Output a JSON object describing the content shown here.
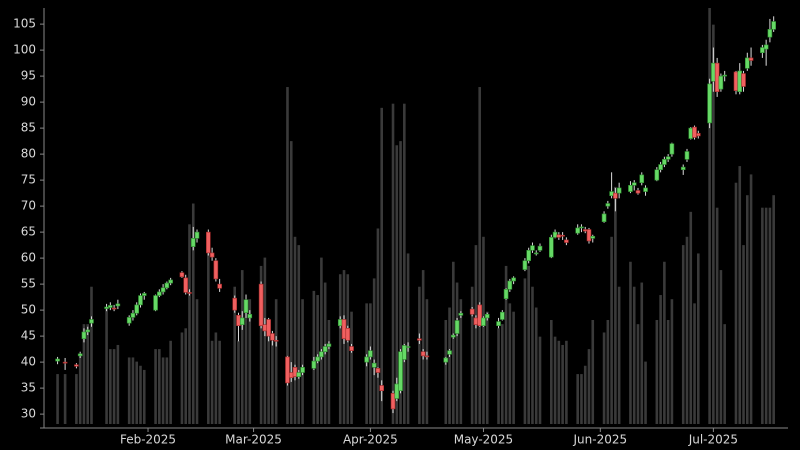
{
  "chart_data": {
    "type": "candlestick",
    "x": [
      8,
      10,
      13,
      14,
      15,
      16,
      17,
      21,
      22,
      23,
      24,
      27,
      28,
      29,
      30,
      31,
      34,
      35,
      36,
      37,
      38,
      41,
      42,
      43,
      44,
      45,
      48,
      49,
      50,
      51,
      55,
      56,
      57,
      58,
      59,
      62,
      63,
      64,
      65,
      66,
      69,
      70,
      71,
      72,
      73,
      76,
      77,
      78,
      79,
      80,
      83,
      84,
      85,
      86,
      90,
      91,
      92,
      93,
      94,
      97,
      98,
      99,
      100,
      101,
      104,
      105,
      106,
      111,
      112,
      113,
      114,
      115,
      118,
      119,
      120,
      121,
      122,
      125,
      126,
      127,
      128,
      129,
      132,
      133,
      134,
      135,
      136,
      139,
      140,
      141,
      142,
      143,
      146,
      147,
      148,
      149,
      150,
      153,
      154,
      155,
      156,
      157,
      160,
      161,
      162,
      163,
      164,
      167,
      168,
      169,
      170,
      171,
      174,
      175,
      176,
      177,
      178,
      181,
      182,
      183,
      184,
      185,
      188,
      189,
      190,
      191,
      192,
      195,
      196,
      197,
      198
    ],
    "open": [
      40.2,
      40,
      39.5,
      41.2,
      44.5,
      45.8,
      47.5,
      50.3,
      50.5,
      50.4,
      50.8,
      47.5,
      48.6,
      49.4,
      51,
      52.8,
      50,
      52.8,
      53.5,
      54.3,
      55.2,
      57.2,
      56.2,
      53.4,
      62.2,
      63.8,
      65,
      61,
      59.5,
      55,
      52.3,
      49,
      47.2,
      49.5,
      48.5,
      55,
      47.2,
      48.2,
      45.5,
      44.2,
      41,
      38,
      39,
      37.2,
      38,
      38.8,
      40.2,
      41,
      42,
      43,
      47,
      48.2,
      46.5,
      43,
      40,
      41,
      39,
      38.8,
      35.5,
      34,
      33,
      34.5,
      40.5,
      43,
      44.5,
      42,
      41.2,
      40,
      41.5,
      44.8,
      45.5,
      49,
      50.2,
      48.5,
      51,
      47,
      48.5,
      47,
      48.2,
      52.2,
      54,
      55.6,
      57.8,
      59.5,
      61.5,
      61,
      61.5,
      60.2,
      64,
      64.5,
      64.4,
      63.5,
      64.8,
      65.8,
      65.5,
      65.5,
      63.8,
      67,
      70,
      72,
      72.5,
      72.5,
      72.8,
      74,
      73,
      74.5,
      72.8,
      75,
      77,
      78,
      79,
      80,
      77,
      79,
      83,
      85.2,
      84,
      86,
      94,
      97.5,
      92.5,
      95,
      95.8,
      92,
      95.5,
      96.5,
      98.5,
      99.5,
      100.2,
      102.5,
      104
    ],
    "high": [
      41,
      40.8,
      39.8,
      42,
      46.5,
      46.8,
      48.8,
      51.2,
      51.5,
      51,
      52,
      49,
      50,
      51.5,
      53.2,
      53.5,
      53,
      54,
      55,
      55.5,
      56.2,
      57.5,
      56.8,
      54,
      66,
      65.5,
      65.5,
      62,
      60,
      56,
      52.8,
      49.5,
      49.8,
      53,
      50,
      55.5,
      48.5,
      48.5,
      46,
      45,
      41.2,
      40,
      39.5,
      38.5,
      39.5,
      41,
      41.5,
      42.5,
      43.5,
      44,
      48.8,
      49,
      47,
      43.5,
      41.5,
      43,
      40.5,
      39,
      36.5,
      34.5,
      37,
      42.5,
      43.5,
      43.8,
      45.5,
      42.5,
      42,
      41,
      42.5,
      45.5,
      48.5,
      49.8,
      50.6,
      49,
      51.5,
      48.8,
      49.5,
      48.5,
      50,
      54.2,
      56,
      56.5,
      60,
      62,
      63,
      61.5,
      62.8,
      64.5,
      65.5,
      65,
      65,
      64,
      66.5,
      66.5,
      66,
      65.8,
      64.5,
      69,
      71,
      76.5,
      73.5,
      74.5,
      74.8,
      75,
      73.5,
      76.5,
      74,
      77.5,
      78.5,
      79.5,
      80,
      82.2,
      78,
      81,
      85.2,
      85.5,
      84.5,
      94.5,
      100.5,
      98.5,
      95.5,
      96,
      96,
      97.5,
      96,
      99.5,
      100.5,
      101,
      102,
      106,
      106.5
    ],
    "low": [
      39.6,
      38.5,
      38.8,
      40.8,
      43.8,
      45.2,
      46.8,
      49.8,
      50,
      49.8,
      50.2,
      47,
      48,
      49,
      50.5,
      52,
      49.8,
      52.5,
      53,
      54,
      54.8,
      56.2,
      53,
      52.8,
      61.5,
      63,
      60.5,
      59.5,
      55.5,
      53.5,
      49.5,
      44,
      46.2,
      48.5,
      47.8,
      46.5,
      45,
      44,
      43.2,
      43,
      35.5,
      36.2,
      36.5,
      36.8,
      37.5,
      38.5,
      39.8,
      40.5,
      41.5,
      42.5,
      46.5,
      43.5,
      43.8,
      41.8,
      39.2,
      40.5,
      37.5,
      37,
      32.5,
      30.2,
      32.5,
      34,
      40,
      42,
      43.5,
      40.5,
      40.5,
      39.5,
      41,
      44.5,
      45,
      48.5,
      48.8,
      46.5,
      46.8,
      46.8,
      48,
      46.5,
      48,
      52,
      53.5,
      55,
      57.5,
      59,
      61,
      60.5,
      61.2,
      60,
      63.8,
      63.5,
      63.5,
      62.5,
      64.5,
      65,
      64.8,
      62.8,
      63,
      66.8,
      69.5,
      71.5,
      69,
      71.5,
      72.5,
      73,
      72.2,
      74,
      72,
      74.8,
      76.5,
      77.5,
      78.5,
      79.5,
      76,
      78.5,
      82.8,
      82.8,
      83,
      85,
      92,
      91,
      92,
      94,
      91.5,
      91.5,
      92,
      96,
      97,
      98.5,
      97,
      101.5,
      103.5
    ],
    "close": [
      40.6,
      39.8,
      39.2,
      41.6,
      45.8,
      46.2,
      48.2,
      50.6,
      50.9,
      50.2,
      51.2,
      48.6,
      49.4,
      51,
      52.8,
      53.2,
      52.8,
      53.5,
      54.3,
      55.2,
      55.8,
      56.4,
      53.4,
      53.2,
      63.8,
      65,
      61,
      60.2,
      56,
      54.2,
      50,
      47,
      48.5,
      52,
      49.2,
      47,
      46,
      45,
      44.2,
      44,
      36,
      37,
      37.2,
      38,
      39,
      40.2,
      41,
      42,
      43,
      43.5,
      48.2,
      44.5,
      44.2,
      42.2,
      41,
      42.2,
      39.8,
      38,
      34.5,
      31,
      35.8,
      42,
      43.2,
      43,
      44.2,
      41.2,
      41,
      40.8,
      42.2,
      45.2,
      48,
      49.4,
      49.2,
      47.2,
      47,
      48.5,
      49.2,
      47.8,
      49.6,
      54,
      55.6,
      56.2,
      59.5,
      61.5,
      62.4,
      61,
      62.3,
      64,
      65,
      64,
      64.3,
      63,
      65.8,
      66,
      65.2,
      63.3,
      64.2,
      68.5,
      70.5,
      72.8,
      71.5,
      73.5,
      74,
      74.5,
      72.5,
      76,
      73.5,
      77,
      78,
      79,
      79.5,
      82,
      77.5,
      80.5,
      85,
      83.2,
      83.5,
      93.5,
      97.5,
      92,
      95,
      95.2,
      92.2,
      96,
      93,
      98.5,
      98,
      100.5,
      101,
      104,
      105.5
    ],
    "volume": [
      12,
      12,
      12,
      17,
      24,
      24,
      33,
      28,
      18,
      18,
      19,
      16,
      16,
      15,
      14,
      13,
      18,
      18,
      16,
      16,
      20,
      22,
      23,
      48,
      53,
      30,
      44,
      20,
      22,
      20,
      33,
      20,
      37,
      27,
      30,
      38,
      40,
      25,
      20,
      30,
      81,
      68,
      45,
      43,
      30,
      32,
      31,
      40,
      34,
      25,
      36,
      37,
      36,
      27,
      29,
      29,
      35,
      47,
      76,
      77,
      67,
      68,
      77,
      41,
      33,
      37,
      30,
      25,
      28,
      39,
      34,
      30,
      33,
      43,
      81,
      45,
      27,
      23,
      24,
      38,
      29,
      27,
      35,
      38,
      33,
      28,
      21,
      25,
      21,
      20,
      19,
      20,
      12,
      12,
      14,
      18,
      25,
      22,
      25,
      45,
      57,
      33,
      39,
      33,
      24,
      34,
      15,
      25,
      31,
      39,
      25,
      30,
      43,
      45,
      51,
      29,
      41,
      100,
      96,
      52,
      37,
      24,
      58,
      62,
      43,
      55,
      60,
      52,
      52,
      52,
      55
    ],
    "xlim": [
      4.4,
      201.8
    ],
    "xticks": [
      {
        "value": 32,
        "label": "Feb-2025"
      },
      {
        "value": 60,
        "label": "Mar-2025"
      },
      {
        "value": 91,
        "label": "Apr-2025"
      },
      {
        "value": 121,
        "label": "May-2025"
      },
      {
        "value": 152,
        "label": "Jun-2025"
      },
      {
        "value": 182,
        "label": "Jul-2025"
      }
    ],
    "ylim": [
      28.1,
      108.1
    ],
    "yticks": [
      30,
      35,
      40,
      45,
      50,
      55,
      60,
      65,
      70,
      75,
      80,
      85,
      90,
      95,
      100,
      105
    ],
    "up_color": "#66d966",
    "down_color": "#f06060",
    "volume_color": "#3a3a3a"
  }
}
